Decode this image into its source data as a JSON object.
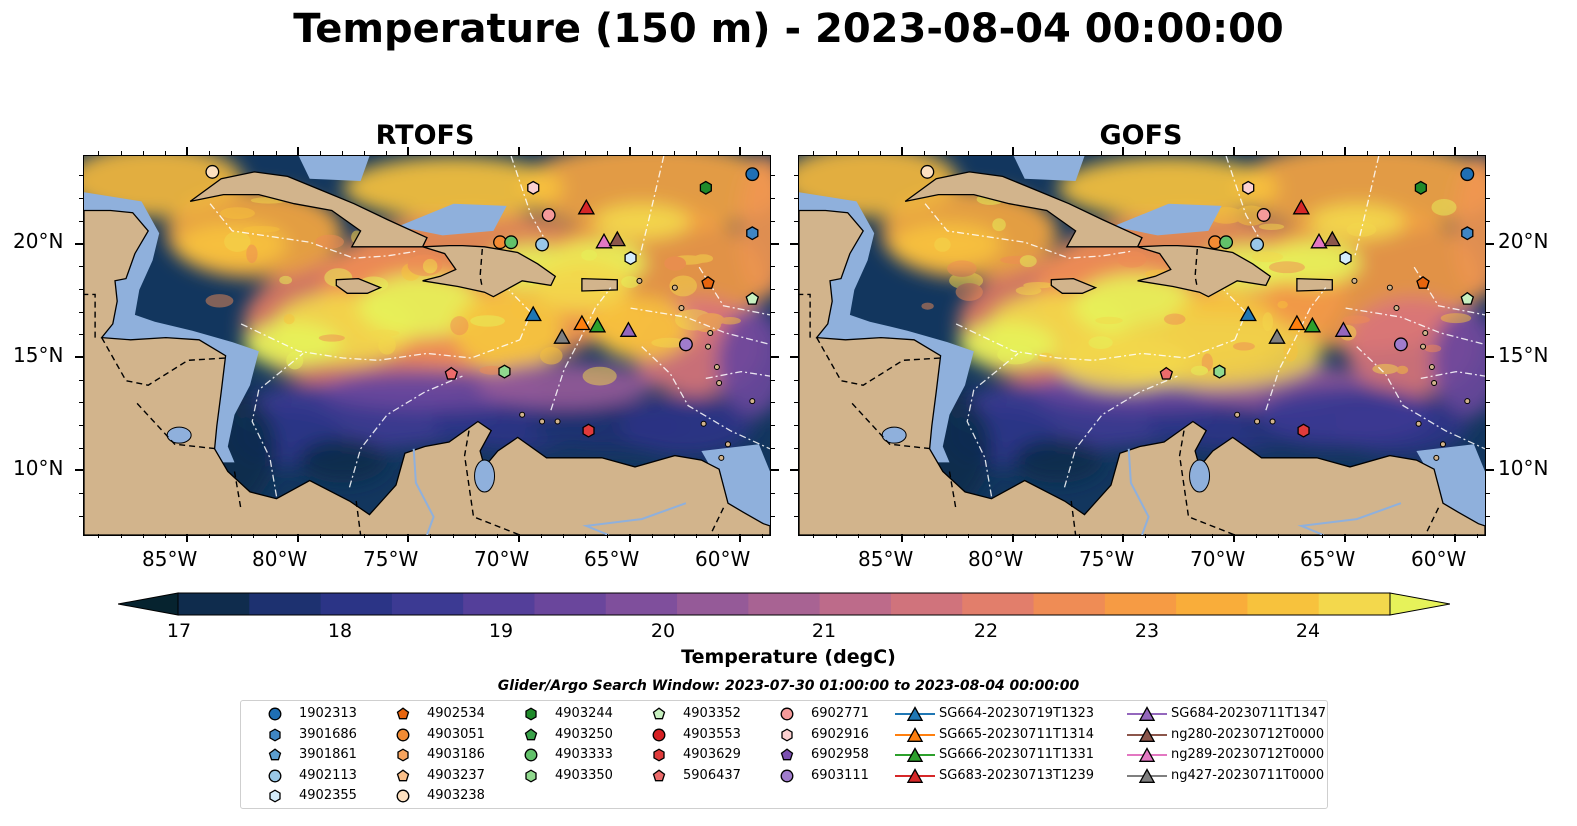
{
  "title": "Temperature (150 m) - 2023-08-04 00:00:00",
  "panels": [
    {
      "title": "RTOFS",
      "variant": "rtofs"
    },
    {
      "title": "GOFS",
      "variant": "gofs"
    }
  ],
  "axes": {
    "x_ticks": [
      "85°W",
      "80°W",
      "75°W",
      "70°W",
      "65°W",
      "60°W"
    ],
    "y_ticks": [
      "20°N",
      "15°N",
      "10°N"
    ]
  },
  "colorbar": {
    "label": "Temperature (degC)",
    "ticks": [
      "17",
      "18",
      "19",
      "20",
      "21",
      "22",
      "23",
      "24"
    ],
    "colors": [
      "#06232f",
      "#0f2c4d",
      "#1d3170",
      "#2b3486",
      "#3c3a93",
      "#543f9a",
      "#6a469c",
      "#7f4f9c",
      "#955a98",
      "#a86393",
      "#bd6b8a",
      "#d0737c",
      "#e27e6b",
      "#ef8c55",
      "#f69b44",
      "#f9ad3a",
      "#f7c23d",
      "#f3d84c",
      "#e6f25a"
    ]
  },
  "legend": {
    "title": "Glider/Argo Search Window: 2023-07-30 01:00:00 to 2023-08-04 00:00:00",
    "columns": [
      [
        {
          "label": "1902313",
          "marker": "circle",
          "color": "#1f6fb4"
        },
        {
          "label": "3901686",
          "marker": "hexagon",
          "color": "#3f86c3"
        },
        {
          "label": "3901861",
          "marker": "pentagon",
          "color": "#5c9ed0"
        },
        {
          "label": "4902113",
          "marker": "circle",
          "color": "#9ac8e8"
        },
        {
          "label": "4902355",
          "marker": "hexagon",
          "color": "#d4ecfa"
        }
      ],
      [
        {
          "label": "4902534",
          "marker": "pentagon",
          "color": "#e8650e"
        },
        {
          "label": "4903051",
          "marker": "circle",
          "color": "#f28b33"
        },
        {
          "label": "4903186",
          "marker": "hexagon",
          "color": "#f7a45e"
        },
        {
          "label": "4903237",
          "marker": "pentagon",
          "color": "#fbc08a"
        },
        {
          "label": "4903238",
          "marker": "circle",
          "color": "#fde0c0"
        }
      ],
      [
        {
          "label": "4903244",
          "marker": "hexagon",
          "color": "#1f8a2a"
        },
        {
          "label": "4903250",
          "marker": "pentagon",
          "color": "#3aa24a"
        },
        {
          "label": "4903333",
          "marker": "circle",
          "color": "#62c16a"
        },
        {
          "label": "4903350",
          "marker": "hexagon",
          "color": "#90d98e"
        }
      ],
      [
        {
          "label": "4903352",
          "marker": "pentagon",
          "color": "#c8f0c0"
        },
        {
          "label": "4903553",
          "marker": "circle",
          "color": "#d62024"
        },
        {
          "label": "4903629",
          "marker": "hexagon",
          "color": "#e03b3b"
        },
        {
          "label": "5906437",
          "marker": "pentagon",
          "color": "#ec6b6b"
        }
      ],
      [
        {
          "label": "6902771",
          "marker": "circle",
          "color": "#f59a9a"
        },
        {
          "label": "6902916",
          "marker": "hexagon",
          "color": "#fcd0d0"
        },
        {
          "label": "6902958",
          "marker": "pentagon",
          "color": "#7b4fb0"
        },
        {
          "label": "6903111",
          "marker": "circle",
          "color": "#a07ccc"
        }
      ],
      [
        {
          "label": "SG664-20230719T1323",
          "marker": "triangle-line",
          "color": "#1f77b4"
        },
        {
          "label": "SG665-20230711T1314",
          "marker": "triangle-line",
          "color": "#ff7f0e"
        },
        {
          "label": "SG666-20230711T1331",
          "marker": "triangle-line",
          "color": "#2ca02c"
        },
        {
          "label": "SG683-20230713T1239",
          "marker": "triangle-line",
          "color": "#d62728"
        }
      ],
      [
        {
          "label": "SG684-20230711T1347",
          "marker": "triangle-line",
          "color": "#9467bd"
        },
        {
          "label": "ng280-20230712T0000",
          "marker": "triangle-line",
          "color": "#8c564b"
        },
        {
          "label": "ng289-20230712T0000",
          "marker": "triangle-line",
          "color": "#e377c2"
        },
        {
          "label": "ng427-20230711T0000",
          "marker": "triangle-line",
          "color": "#7f7f7f"
        }
      ]
    ]
  },
  "markers_on_map": [
    {
      "label": "4903238",
      "marker": "circle",
      "color": "#fde0c0",
      "lon": -83.9,
      "lat": 23.2
    },
    {
      "label": "1902313",
      "marker": "circle",
      "color": "#1f6fb4",
      "lon": -59.5,
      "lat": 23.1
    },
    {
      "label": "4903244",
      "marker": "hexagon",
      "color": "#1f8a2a",
      "lon": -61.6,
      "lat": 22.5
    },
    {
      "label": "6902916",
      "marker": "hexagon",
      "color": "#fcd0d0",
      "lon": -69.4,
      "lat": 22.5
    },
    {
      "label": "6902771",
      "marker": "circle",
      "color": "#f59a9a",
      "lon": -68.7,
      "lat": 21.3
    },
    {
      "label": "SG683-20230713T1239",
      "marker": "triangle",
      "color": "#d62728",
      "lon": -67.0,
      "lat": 21.6
    },
    {
      "label": "3901686",
      "marker": "hexagon",
      "color": "#3f86c3",
      "lon": -59.5,
      "lat": 20.5
    },
    {
      "label": "4903051",
      "marker": "circle",
      "color": "#f28b33",
      "lon": -70.9,
      "lat": 20.1
    },
    {
      "label": "4903333",
      "marker": "circle",
      "color": "#62c16a",
      "lon": -70.4,
      "lat": 20.1
    },
    {
      "label": "4902113",
      "marker": "circle",
      "color": "#9ac8e8",
      "lon": -69.0,
      "lat": 20.0
    },
    {
      "label": "ng289-20230712T0000",
      "marker": "triangle",
      "color": "#e377c2",
      "lon": -66.2,
      "lat": 20.1
    },
    {
      "label": "ng280-20230712T0000",
      "marker": "triangle",
      "color": "#8c564b",
      "lon": -65.6,
      "lat": 20.2
    },
    {
      "label": "4902355",
      "marker": "hexagon",
      "color": "#d4ecfa",
      "lon": -65.0,
      "lat": 19.4
    },
    {
      "label": "4902534",
      "marker": "pentagon",
      "color": "#e8650e",
      "lon": -61.5,
      "lat": 18.3
    },
    {
      "label": "4903352",
      "marker": "pentagon",
      "color": "#c8f0c0",
      "lon": -59.5,
      "lat": 17.6
    },
    {
      "label": "SG664-20230719T1323",
      "marker": "triangle",
      "color": "#1f77b4",
      "lon": -69.4,
      "lat": 16.9
    },
    {
      "label": "SG665-20230711T1314",
      "marker": "triangle",
      "color": "#ff7f0e",
      "lon": -67.2,
      "lat": 16.5
    },
    {
      "label": "SG666-20230711T1331",
      "marker": "triangle",
      "color": "#2ca02c",
      "lon": -66.5,
      "lat": 16.4
    },
    {
      "label": "ng427-20230711T0000",
      "marker": "triangle",
      "color": "#7f7f7f",
      "lon": -68.1,
      "lat": 15.9
    },
    {
      "label": "SG684-20230711T1347",
      "marker": "triangle",
      "color": "#9467bd",
      "lon": -65.1,
      "lat": 16.2
    },
    {
      "label": "6903111",
      "marker": "circle",
      "color": "#a07ccc",
      "lon": -62.5,
      "lat": 15.6
    },
    {
      "label": "5906437",
      "marker": "pentagon",
      "color": "#ec6b6b",
      "lon": -73.1,
      "lat": 14.3
    },
    {
      "label": "4903350",
      "marker": "hexagon",
      "color": "#90d98e",
      "lon": -70.7,
      "lat": 14.4
    },
    {
      "label": "6902958",
      "marker": "pentagon",
      "color": "#7b4fb0",
      "lon": -58.4,
      "lat": 13.9
    },
    {
      "label": "4903629",
      "marker": "hexagon",
      "color": "#e03b3b",
      "lon": -66.9,
      "lat": 11.8
    }
  ]
}
